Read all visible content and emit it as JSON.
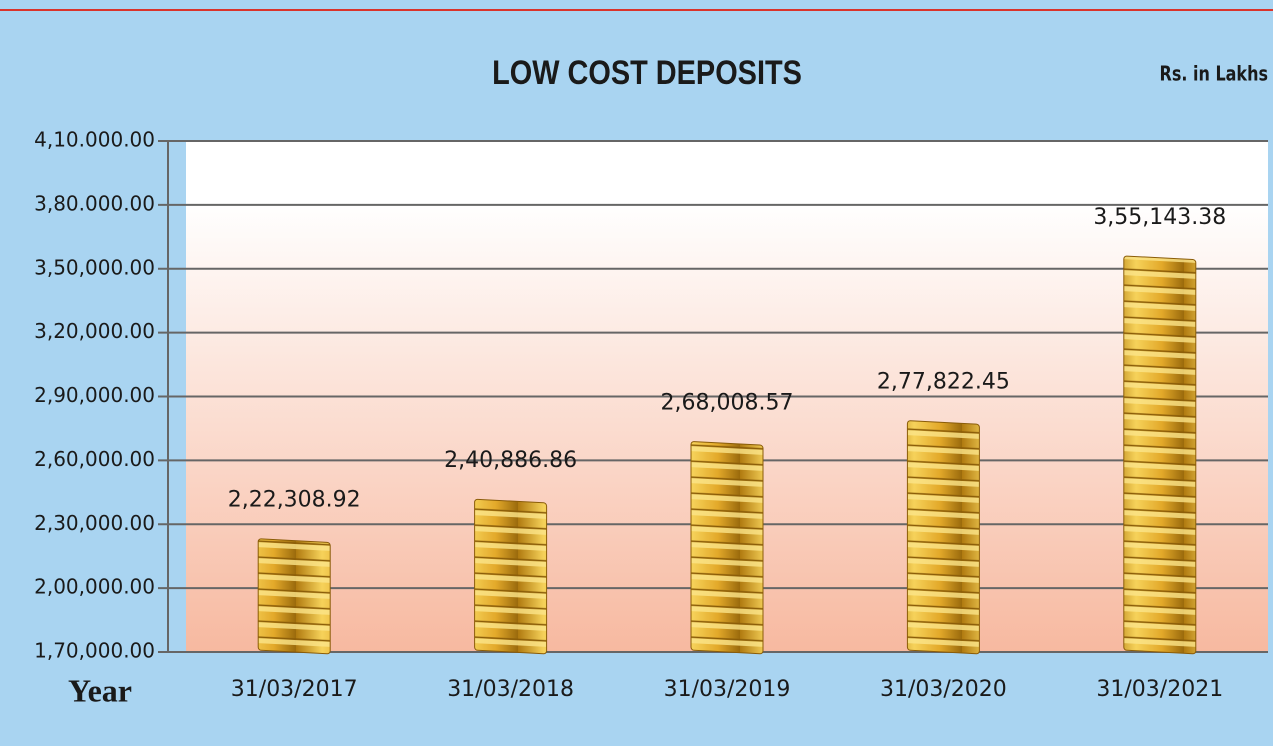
{
  "chart_data": {
    "type": "bar",
    "title": "LOW COST DEPOSITS",
    "subtitle": "Rs. in Lakhs",
    "x_label": "Year",
    "categories": [
      "31/03/2017",
      "31/03/2018",
      "31/03/2019",
      "31/03/2020",
      "31/03/2021"
    ],
    "values": [
      222308.92,
      240886.86,
      268008.57,
      277822.45,
      355143.38
    ],
    "value_labels": [
      "2,22,308.92",
      "2,40,886.86",
      "2,68,008.57",
      "2,77,822.45",
      "3,55,143.38"
    ],
    "color": "#e0a82a",
    "ylim": [
      170000,
      410000
    ],
    "yticks": [
      {
        "value": 170000,
        "label": "1,70,000.00"
      },
      {
        "value": 200000,
        "label": "2,00,000.00"
      },
      {
        "value": 230000,
        "label": "2,30,000.00"
      },
      {
        "value": 260000,
        "label": "2,60,000.00"
      },
      {
        "value": 290000,
        "label": "2,90,000.00"
      },
      {
        "value": 320000,
        "label": "3,20,000.00"
      },
      {
        "value": 350000,
        "label": "3,50,000.00"
      },
      {
        "value": 380000,
        "label": "3,80.000.00"
      },
      {
        "value": 410000,
        "label": "4,10.000.00"
      }
    ],
    "grid": true
  }
}
